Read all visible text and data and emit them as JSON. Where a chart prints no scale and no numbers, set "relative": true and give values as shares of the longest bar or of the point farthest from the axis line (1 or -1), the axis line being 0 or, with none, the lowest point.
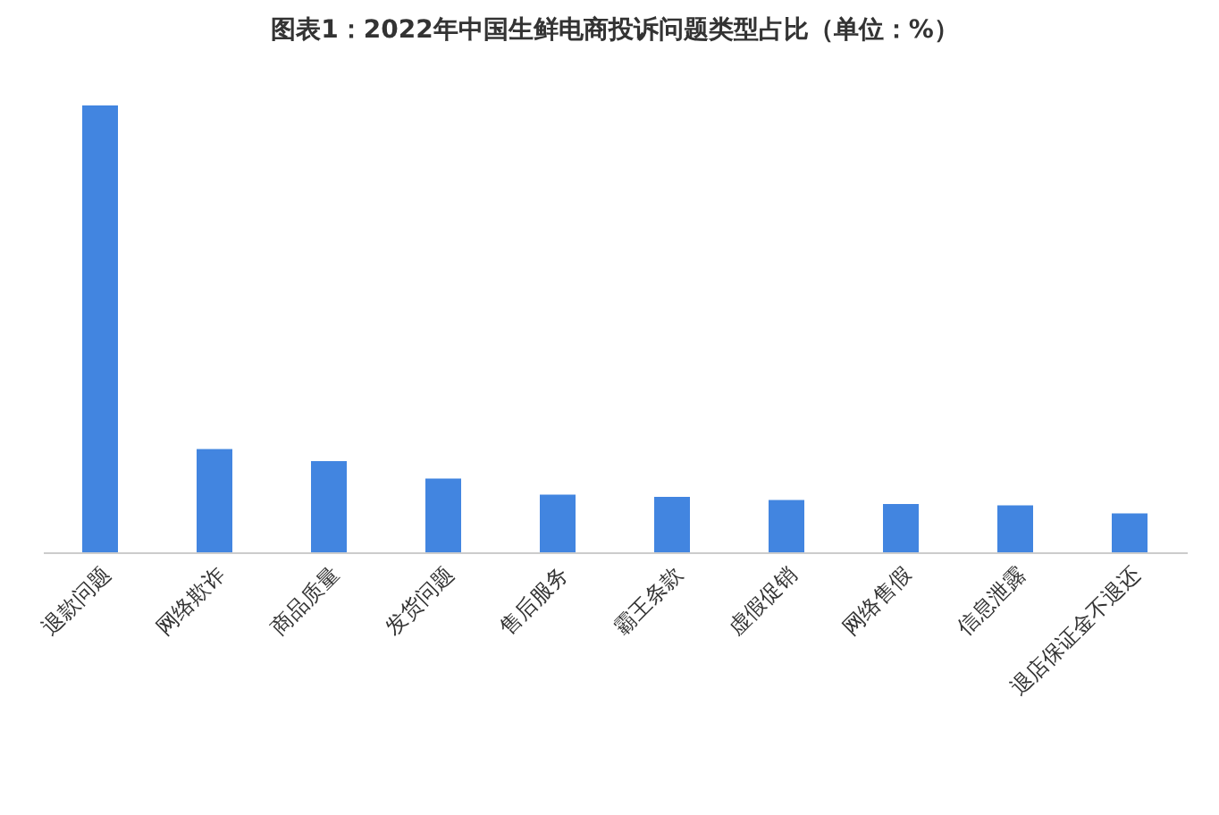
{
  "chart_data": {
    "type": "bar",
    "title": "图表1：2022年中国生鲜电商投诉问题类型占比（单位：%）",
    "categories": [
      "退款问题",
      "网络欺诈",
      "商品质量",
      "发货问题",
      "售后服务",
      "霸王条款",
      "虚假促销",
      "网络售假",
      "信息泄露",
      "退店保证金不退还"
    ],
    "values": [
      1,
      0.231,
      0.204,
      0.165,
      0.129,
      0.124,
      0.117,
      0.108,
      0.105,
      0.087
    ],
    "color": "#4285e0",
    "relative": true
  }
}
